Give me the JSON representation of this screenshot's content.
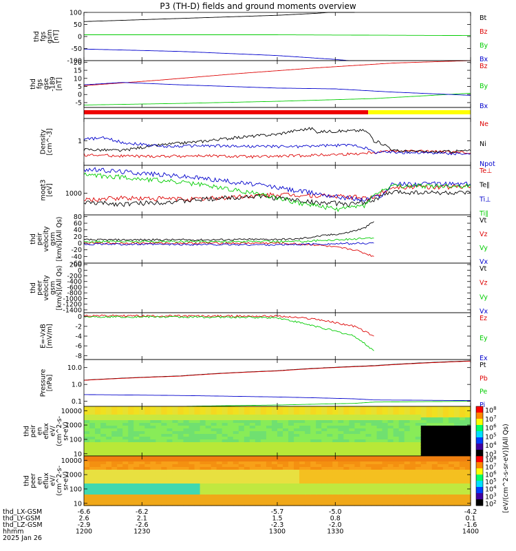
{
  "title": "P3 (TH-D) fields and ground moments overview",
  "colors": {
    "black": "#000000",
    "red": "#dd0000",
    "green": "#00cc00",
    "blue": "#0000cc",
    "yellow": "#ffff00"
  },
  "chart_data": [
    {
      "type": "line",
      "id": "fgs_gsm",
      "ylabel_lines": [
        "thd",
        "fgs",
        "gsm",
        "[nT]"
      ],
      "ylim": [
        -100,
        100
      ],
      "yticks": [
        100,
        50,
        0,
        -50,
        -100
      ],
      "x": [
        1200,
        1400
      ],
      "series": [
        {
          "name": "Bt",
          "color": "black",
          "points": [
            [
              1200,
              62
            ],
            [
              1250,
              75
            ],
            [
              1300,
              88
            ],
            [
              1320,
              96
            ],
            [
              1340,
              108
            ]
          ]
        },
        {
          "name": "Bz",
          "color": "red",
          "points": []
        },
        {
          "name": "By",
          "color": "green",
          "points": [
            [
              1200,
              7
            ],
            [
              1300,
              7
            ],
            [
              1400,
              4
            ]
          ]
        },
        {
          "name": "Bx",
          "color": "blue",
          "points": [
            [
              1200,
              -52
            ],
            [
              1250,
              -62
            ],
            [
              1300,
              -79
            ],
            [
              1330,
              -95
            ],
            [
              1340,
              -102
            ]
          ]
        }
      ]
    },
    {
      "type": "line",
      "id": "fgs_gse",
      "ylabel_lines": [
        "thd",
        "fgs",
        "gse",
        "-189",
        "[nT]"
      ],
      "ylim": [
        -8,
        21
      ],
      "yticks": [
        20,
        15,
        10,
        5,
        0,
        -5
      ],
      "x": [
        1200,
        1400
      ],
      "series": [
        {
          "name": "Bz",
          "color": "red",
          "points": [
            [
              1200,
              5.5
            ],
            [
              1240,
              9
            ],
            [
              1280,
              13
            ],
            [
              1320,
              16.5
            ],
            [
              1360,
              19.5
            ],
            [
              1400,
              21
            ]
          ]
        },
        {
          "name": "By",
          "color": "green",
          "points": [
            [
              1200,
              -6.5
            ],
            [
              1250,
              -5.5
            ],
            [
              1300,
              -4.2
            ],
            [
              1350,
              -2.5
            ],
            [
              1400,
              0.8
            ]
          ]
        },
        {
          "name": "Bx",
          "color": "blue",
          "points": [
            [
              1200,
              6
            ],
            [
              1220,
              7.5
            ],
            [
              1250,
              6
            ],
            [
              1300,
              4
            ],
            [
              1330,
              3.5
            ],
            [
              1360,
              1.5
            ],
            [
              1400,
              -0.5
            ]
          ]
        }
      ]
    },
    {
      "type": "line",
      "id": "density",
      "yscale": "log",
      "ylabel_lines": [
        "Density",
        "[cm^-3]"
      ],
      "ylim": [
        0.05,
        15
      ],
      "yticks": [
        1
      ],
      "x": [
        1200,
        1400
      ],
      "series": [
        {
          "name": "Ne",
          "color": "red",
          "points": [
            [
              1200,
              0.18
            ],
            [
              1230,
              0.15
            ],
            [
              1260,
              0.16
            ],
            [
              1290,
              0.14
            ],
            [
              1310,
              0.16
            ],
            [
              1340,
              0.2
            ],
            [
              1360,
              0.3
            ],
            [
              1390,
              0.25
            ],
            [
              1400,
              0.22
            ]
          ]
        },
        {
          "name": "Ni",
          "color": "black",
          "points": [
            [
              1200,
              0.35
            ],
            [
              1220,
              0.3
            ],
            [
              1240,
              0.6
            ],
            [
              1260,
              0.9
            ],
            [
              1280,
              1.5
            ],
            [
              1300,
              2.2
            ],
            [
              1318,
              4.5
            ],
            [
              1320,
              3
            ],
            [
              1330,
              3.2
            ],
            [
              1345,
              3.5
            ],
            [
              1350,
              1.0
            ],
            [
              1360,
              0.3
            ],
            [
              1380,
              0.25
            ],
            [
              1400,
              0.3
            ]
          ]
        },
        {
          "name": "Npot",
          "color": "blue",
          "points": [
            [
              1200,
              1.2
            ],
            [
              1210,
              1.4
            ],
            [
              1220,
              0.8
            ],
            [
              1240,
              0.5
            ],
            [
              1260,
              0.55
            ],
            [
              1290,
              0.5
            ],
            [
              1310,
              0.5
            ],
            [
              1340,
              0.6
            ],
            [
              1350,
              0.25
            ],
            [
              1360,
              0.25
            ],
            [
              1400,
              0.2
            ]
          ]
        }
      ]
    },
    {
      "type": "line",
      "id": "temperature",
      "yscale": "log",
      "ylabel_lines": [
        "moqt3",
        "[eV]"
      ],
      "ylim": [
        200,
        8000
      ],
      "yticks": [
        1000
      ],
      "x": [
        1200,
        1400
      ],
      "series": [
        {
          "name": "Te⊥",
          "color": "red",
          "points": [
            [
              1200,
              600
            ],
            [
              1220,
              700
            ],
            [
              1260,
              650
            ],
            [
              1300,
              900
            ],
            [
              1330,
              800
            ],
            [
              1350,
              700
            ],
            [
              1360,
              1600
            ],
            [
              1400,
              1600
            ]
          ]
        },
        {
          "name": "Te∥",
          "color": "black",
          "points": [
            [
              1200,
              500
            ],
            [
              1220,
              450
            ],
            [
              1250,
              550
            ],
            [
              1270,
              700
            ],
            [
              1290,
              800
            ],
            [
              1320,
              500
            ],
            [
              1340,
              450
            ],
            [
              1350,
              600
            ],
            [
              1360,
              1100
            ],
            [
              1400,
              1000
            ]
          ]
        },
        {
          "name": "Ti⊥",
          "color": "blue",
          "points": [
            [
              1200,
              6000
            ],
            [
              1240,
              4000
            ],
            [
              1280,
              2200
            ],
            [
              1310,
              1200
            ],
            [
              1330,
              800
            ],
            [
              1345,
              600
            ],
            [
              1355,
              900
            ],
            [
              1360,
              2000
            ],
            [
              1400,
              2000
            ]
          ]
        },
        {
          "name": "Ti∥",
          "color": "green",
          "points": [
            [
              1200,
              4000
            ],
            [
              1240,
              2600
            ],
            [
              1280,
              1200
            ],
            [
              1310,
              500
            ],
            [
              1330,
              300
            ],
            [
              1345,
              400
            ],
            [
              1360,
              1700
            ],
            [
              1400,
              1700
            ]
          ]
        }
      ]
    },
    {
      "type": "line",
      "id": "peir_velocity",
      "ylabel_lines": [
        "thd",
        "peir",
        "velocity",
        "gsm",
        "[km/s](All Qs)"
      ],
      "ylim": [
        -60,
        85
      ],
      "yticks": [
        80,
        60,
        40,
        20,
        0,
        -20,
        -40,
        -60
      ],
      "x": [
        1200,
        1400
      ],
      "series": [
        {
          "name": "Vt",
          "color": "black",
          "points": [
            [
              1200,
              10
            ],
            [
              1260,
              10
            ],
            [
              1310,
              12
            ],
            [
              1320,
              20
            ],
            [
              1335,
              30
            ],
            [
              1345,
              45
            ],
            [
              1350,
              65
            ]
          ]
        },
        {
          "name": "Vz",
          "color": "red",
          "points": [
            [
              1200,
              0
            ],
            [
              1300,
              0
            ],
            [
              1320,
              -5
            ],
            [
              1340,
              -20
            ],
            [
              1350,
              -40
            ]
          ]
        },
        {
          "name": "Vy",
          "color": "green",
          "points": [
            [
              1200,
              5
            ],
            [
              1310,
              5
            ],
            [
              1350,
              15
            ]
          ]
        },
        {
          "name": "Vx",
          "color": "blue",
          "points": [
            [
              1200,
              -3
            ],
            [
              1300,
              -5
            ],
            [
              1350,
              0
            ]
          ]
        }
      ]
    },
    {
      "type": "line",
      "id": "peer_velocity",
      "ylabel_lines": [
        "thd",
        "peer",
        "velocity",
        "gsm",
        "[km/s](All Qs)"
      ],
      "ylim": [
        -1500,
        250
      ],
      "yticks": [
        200,
        0,
        -200,
        -400,
        -600,
        -800,
        -1000,
        -1200,
        -1400
      ],
      "x": [
        1200,
        1400
      ],
      "series": [
        {
          "name": "Vt",
          "color": "black",
          "points": []
        },
        {
          "name": "Vz",
          "color": "red",
          "points": []
        },
        {
          "name": "Vy",
          "color": "green",
          "points": []
        },
        {
          "name": "Vx",
          "color": "blue",
          "points": []
        }
      ]
    },
    {
      "type": "line",
      "id": "efield",
      "ylabel_lines": [
        "E=-VxB",
        "[mV/m]"
      ],
      "ylim": [
        -8.8,
        0.8
      ],
      "yticks": [
        0,
        -2,
        -4,
        -6,
        -8
      ],
      "x": [
        1200,
        1400
      ],
      "series": [
        {
          "name": "Ez",
          "color": "red",
          "points": [
            [
              1200,
              0.2
            ],
            [
              1260,
              0.1
            ],
            [
              1300,
              0.1
            ],
            [
              1320,
              -0.5
            ],
            [
              1340,
              -2
            ],
            [
              1350,
              -4
            ]
          ]
        },
        {
          "name": "Ey",
          "color": "green",
          "points": [
            [
              1200,
              0
            ],
            [
              1260,
              -0.1
            ],
            [
              1300,
              -0.2
            ],
            [
              1320,
              -2
            ],
            [
              1340,
              -4
            ],
            [
              1350,
              -7
            ]
          ]
        },
        {
          "name": "Ex",
          "color": "blue",
          "points": []
        }
      ]
    },
    {
      "type": "line",
      "id": "pressure",
      "yscale": "log",
      "ylabel_lines": [
        "Pressure",
        "[nPa]"
      ],
      "ylim": [
        0.05,
        30
      ],
      "yticks": [
        10.0,
        1.0,
        0.1
      ],
      "ytick_labels": [
        "10.0",
        "1.0",
        "0.1"
      ],
      "x": [
        1200,
        1400
      ],
      "series": [
        {
          "name": "Pt",
          "color": "black",
          "points": [
            [
              1200,
              1.8
            ],
            [
              1250,
              3.2
            ],
            [
              1300,
              6.5
            ],
            [
              1350,
              13
            ],
            [
              1400,
              25
            ]
          ]
        },
        {
          "name": "Pb",
          "color": "red",
          "points": [
            [
              1200,
              1.75
            ],
            [
              1250,
              3.1
            ],
            [
              1300,
              6.3
            ],
            [
              1350,
              12.5
            ],
            [
              1400,
              24
            ]
          ]
        },
        {
          "name": "Pe",
          "color": "green",
          "points": [
            [
              1200,
              0.045
            ],
            [
              1250,
              0.05
            ],
            [
              1300,
              0.06
            ],
            [
              1340,
              0.075
            ],
            [
              1350,
              0.09
            ],
            [
              1400,
              0.1
            ]
          ]
        },
        {
          "name": "Pi",
          "color": "blue",
          "points": [
            [
              1200,
              0.25
            ],
            [
              1250,
              0.22
            ],
            [
              1300,
              0.18
            ],
            [
              1340,
              0.14
            ],
            [
              1350,
              0.12
            ],
            [
              1400,
              0.11
            ]
          ]
        }
      ]
    },
    {
      "type": "heatmap",
      "id": "peir_en_eflux",
      "ylabel_lines": [
        "thd",
        "peir",
        "en",
        "eflux",
        "eV/",
        "(cm^2-s-",
        "sr-eV)"
      ],
      "yscale": "log",
      "ylim": [
        7,
        20000
      ],
      "yticks": [
        10000,
        1000,
        100,
        10
      ],
      "x": [
        1200,
        1400
      ],
      "colorbar": {
        "label": "[eV/(cm^2-s-sr-eV)](All Qs)",
        "ticks": [
          "10^8",
          "10^7",
          "10^6",
          "10^5",
          "10^4",
          "10^3"
        ]
      }
    },
    {
      "type": "heatmap",
      "id": "peer_en_eflux",
      "ylabel_lines": [
        "thd",
        "peer",
        "en",
        "eflux",
        "eV/",
        "(cm^2-s-",
        "sr-eV)"
      ],
      "yscale": "log",
      "ylim": [
        7,
        20000
      ],
      "yticks": [
        10000,
        1000,
        100,
        10
      ],
      "x": [
        1200,
        1400
      ],
      "colorbar": {
        "ticks": [
          "10^8",
          "10^7",
          "10^6",
          "10^5",
          "10^4",
          "10^3",
          "10^2"
        ]
      }
    }
  ],
  "xaxis": {
    "rows": [
      {
        "label": "thd_LX-GSM",
        "values": [
          "-6.6",
          "-6.2",
          "-5.7",
          "-5.0",
          "-4.2"
        ]
      },
      {
        "label": "thd_LY-GSM",
        "values": [
          "2.6",
          "2.1",
          "1.5",
          "0.8",
          "0.1"
        ]
      },
      {
        "label": "thd_LZ-GSM",
        "values": [
          "-2.9",
          "-2.6",
          "-2.3",
          "-2.0",
          "-1.6"
        ]
      },
      {
        "label": "hhmm",
        "values": [
          "1200",
          "1230",
          "1300",
          "1330",
          "1400"
        ]
      }
    ],
    "date": "2025 Jan 26"
  },
  "mode_bar": {
    "red_until": 1347,
    "yellow_from": 1347
  }
}
